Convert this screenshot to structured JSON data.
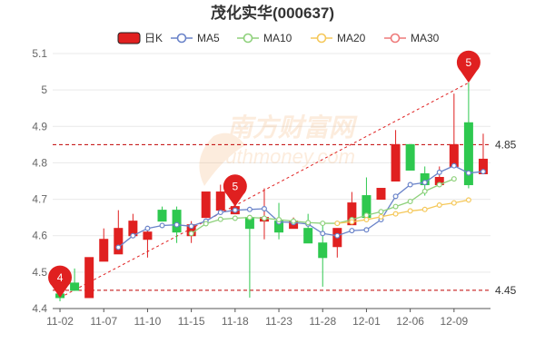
{
  "chart_data": {
    "type": "candlestick",
    "title": "茂化实华(000637)",
    "legend": [
      {
        "name": "日K",
        "color": "#e02020"
      },
      {
        "name": "MA5",
        "color": "#6a83c9"
      },
      {
        "name": "MA10",
        "color": "#8fd17c"
      },
      {
        "name": "MA20",
        "color": "#f5c85a"
      },
      {
        "name": "MA30",
        "color": "#ee7a7a"
      }
    ],
    "colors": {
      "up": "#e02020",
      "down": "#2ec84f",
      "grid": "#e9e9e9",
      "ref": "#c00000",
      "trend": "#e02020"
    },
    "x_tick_labels": [
      "11-02",
      "11-07",
      "11-10",
      "11-15",
      "11-18",
      "11-23",
      "11-28",
      "12-01",
      "12-06",
      "12-09"
    ],
    "x_tick_indices": [
      0,
      3,
      6,
      9,
      12,
      15,
      18,
      21,
      24,
      27
    ],
    "y_tick_labels": [
      "4.4",
      "4.5",
      "4.6",
      "4.7",
      "4.8",
      "4.9",
      "5",
      "5.1"
    ],
    "ylim": [
      4.4,
      5.1
    ],
    "candles": [
      {
        "date": "11-02",
        "open": 4.44,
        "close": 4.43,
        "high": 4.49,
        "low": 4.42
      },
      {
        "date": "11-03",
        "open": 4.47,
        "close": 4.45,
        "high": 4.51,
        "low": 4.45
      },
      {
        "date": "11-04",
        "open": 4.43,
        "close": 4.54,
        "high": 4.54,
        "low": 4.43
      },
      {
        "date": "11-07",
        "open": 4.53,
        "close": 4.59,
        "high": 4.62,
        "low": 4.53
      },
      {
        "date": "11-08",
        "open": 4.55,
        "close": 4.62,
        "high": 4.67,
        "low": 4.55
      },
      {
        "date": "11-09",
        "open": 4.6,
        "close": 4.64,
        "high": 4.66,
        "low": 4.6
      },
      {
        "date": "11-10",
        "open": 4.59,
        "close": 4.61,
        "high": 4.62,
        "low": 4.54
      },
      {
        "date": "11-11",
        "open": 4.67,
        "close": 4.64,
        "high": 4.68,
        "low": 4.64
      },
      {
        "date": "11-14",
        "open": 4.67,
        "close": 4.61,
        "high": 4.68,
        "low": 4.58
      },
      {
        "date": "11-15",
        "open": 4.6,
        "close": 4.63,
        "high": 4.64,
        "low": 4.58
      },
      {
        "date": "11-16",
        "open": 4.65,
        "close": 4.72,
        "high": 4.72,
        "low": 4.65
      },
      {
        "date": "11-17",
        "open": 4.67,
        "close": 4.72,
        "high": 4.74,
        "low": 4.67
      },
      {
        "date": "11-18",
        "open": 4.66,
        "close": 4.68,
        "high": 4.7,
        "low": 4.66
      },
      {
        "date": "11-21",
        "open": 4.65,
        "close": 4.62,
        "high": 4.65,
        "low": 4.43
      },
      {
        "date": "11-22",
        "open": 4.64,
        "close": 4.65,
        "high": 4.73,
        "low": 4.59
      },
      {
        "date": "11-23",
        "open": 4.64,
        "close": 4.61,
        "high": 4.69,
        "low": 4.59
      },
      {
        "date": "11-24",
        "open": 4.62,
        "close": 4.64,
        "high": 4.65,
        "low": 4.62
      },
      {
        "date": "11-25",
        "open": 4.62,
        "close": 4.58,
        "high": 4.66,
        "low": 4.58
      },
      {
        "date": "11-28",
        "open": 4.58,
        "close": 4.54,
        "high": 4.64,
        "low": 4.46
      },
      {
        "date": "11-29",
        "open": 4.57,
        "close": 4.62,
        "high": 4.62,
        "low": 4.54
      },
      {
        "date": "11-30",
        "open": 4.63,
        "close": 4.69,
        "high": 4.72,
        "low": 4.63
      },
      {
        "date": "12-01",
        "open": 4.71,
        "close": 4.65,
        "high": 4.76,
        "low": 4.65
      },
      {
        "date": "12-02",
        "open": 4.7,
        "close": 4.73,
        "high": 4.73,
        "low": 4.7
      },
      {
        "date": "12-05",
        "open": 4.75,
        "close": 4.85,
        "high": 4.89,
        "low": 4.75
      },
      {
        "date": "12-06",
        "open": 4.85,
        "close": 4.78,
        "high": 4.85,
        "low": 4.78
      },
      {
        "date": "12-07",
        "open": 4.77,
        "close": 4.74,
        "high": 4.79,
        "low": 4.71
      },
      {
        "date": "12-08",
        "open": 4.74,
        "close": 4.76,
        "high": 4.79,
        "low": 4.74
      },
      {
        "date": "12-09",
        "open": 4.79,
        "close": 4.85,
        "high": 4.99,
        "low": 4.79
      },
      {
        "date": "12-12",
        "open": 4.91,
        "close": 4.74,
        "high": 5.02,
        "low": 4.73
      },
      {
        "date": "12-13",
        "open": 4.77,
        "close": 4.81,
        "high": 4.88,
        "low": 4.77
      }
    ],
    "ma_series": [
      {
        "name": "MA5",
        "start": 4,
        "values": [
          4.568,
          4.6,
          4.62,
          4.628,
          4.63,
          4.626,
          4.64,
          4.664,
          4.67,
          4.672,
          4.674,
          4.638,
          4.636,
          4.632,
          4.606,
          4.6,
          4.614,
          4.616,
          4.644,
          4.708,
          4.74,
          4.746,
          4.774,
          4.792,
          4.772,
          4.776
        ]
      },
      {
        "name": "MA10",
        "start": 9,
        "values": [
          4.606,
          4.633,
          4.645,
          4.648,
          4.65,
          4.648,
          4.644,
          4.64,
          4.636,
          4.634,
          4.634,
          4.644,
          4.656,
          4.666,
          4.68,
          4.694,
          4.722,
          4.74,
          4.756
        ]
      },
      {
        "name": "MA20",
        "start": 19,
        "values": [
          4.634,
          4.638,
          4.644,
          4.652,
          4.66,
          4.668,
          4.672,
          4.684,
          4.69,
          4.698
        ]
      }
    ],
    "reference_lines": [
      {
        "label": "4.85",
        "value": 4.85
      },
      {
        "label": "4.45",
        "value": 4.45
      }
    ],
    "markers": [
      {
        "label": "4",
        "index": 0,
        "value": 4.43
      },
      {
        "label": "5",
        "index": 12,
        "value": 4.68
      },
      {
        "label": "5",
        "index": 28,
        "value": 5.02
      }
    ]
  }
}
